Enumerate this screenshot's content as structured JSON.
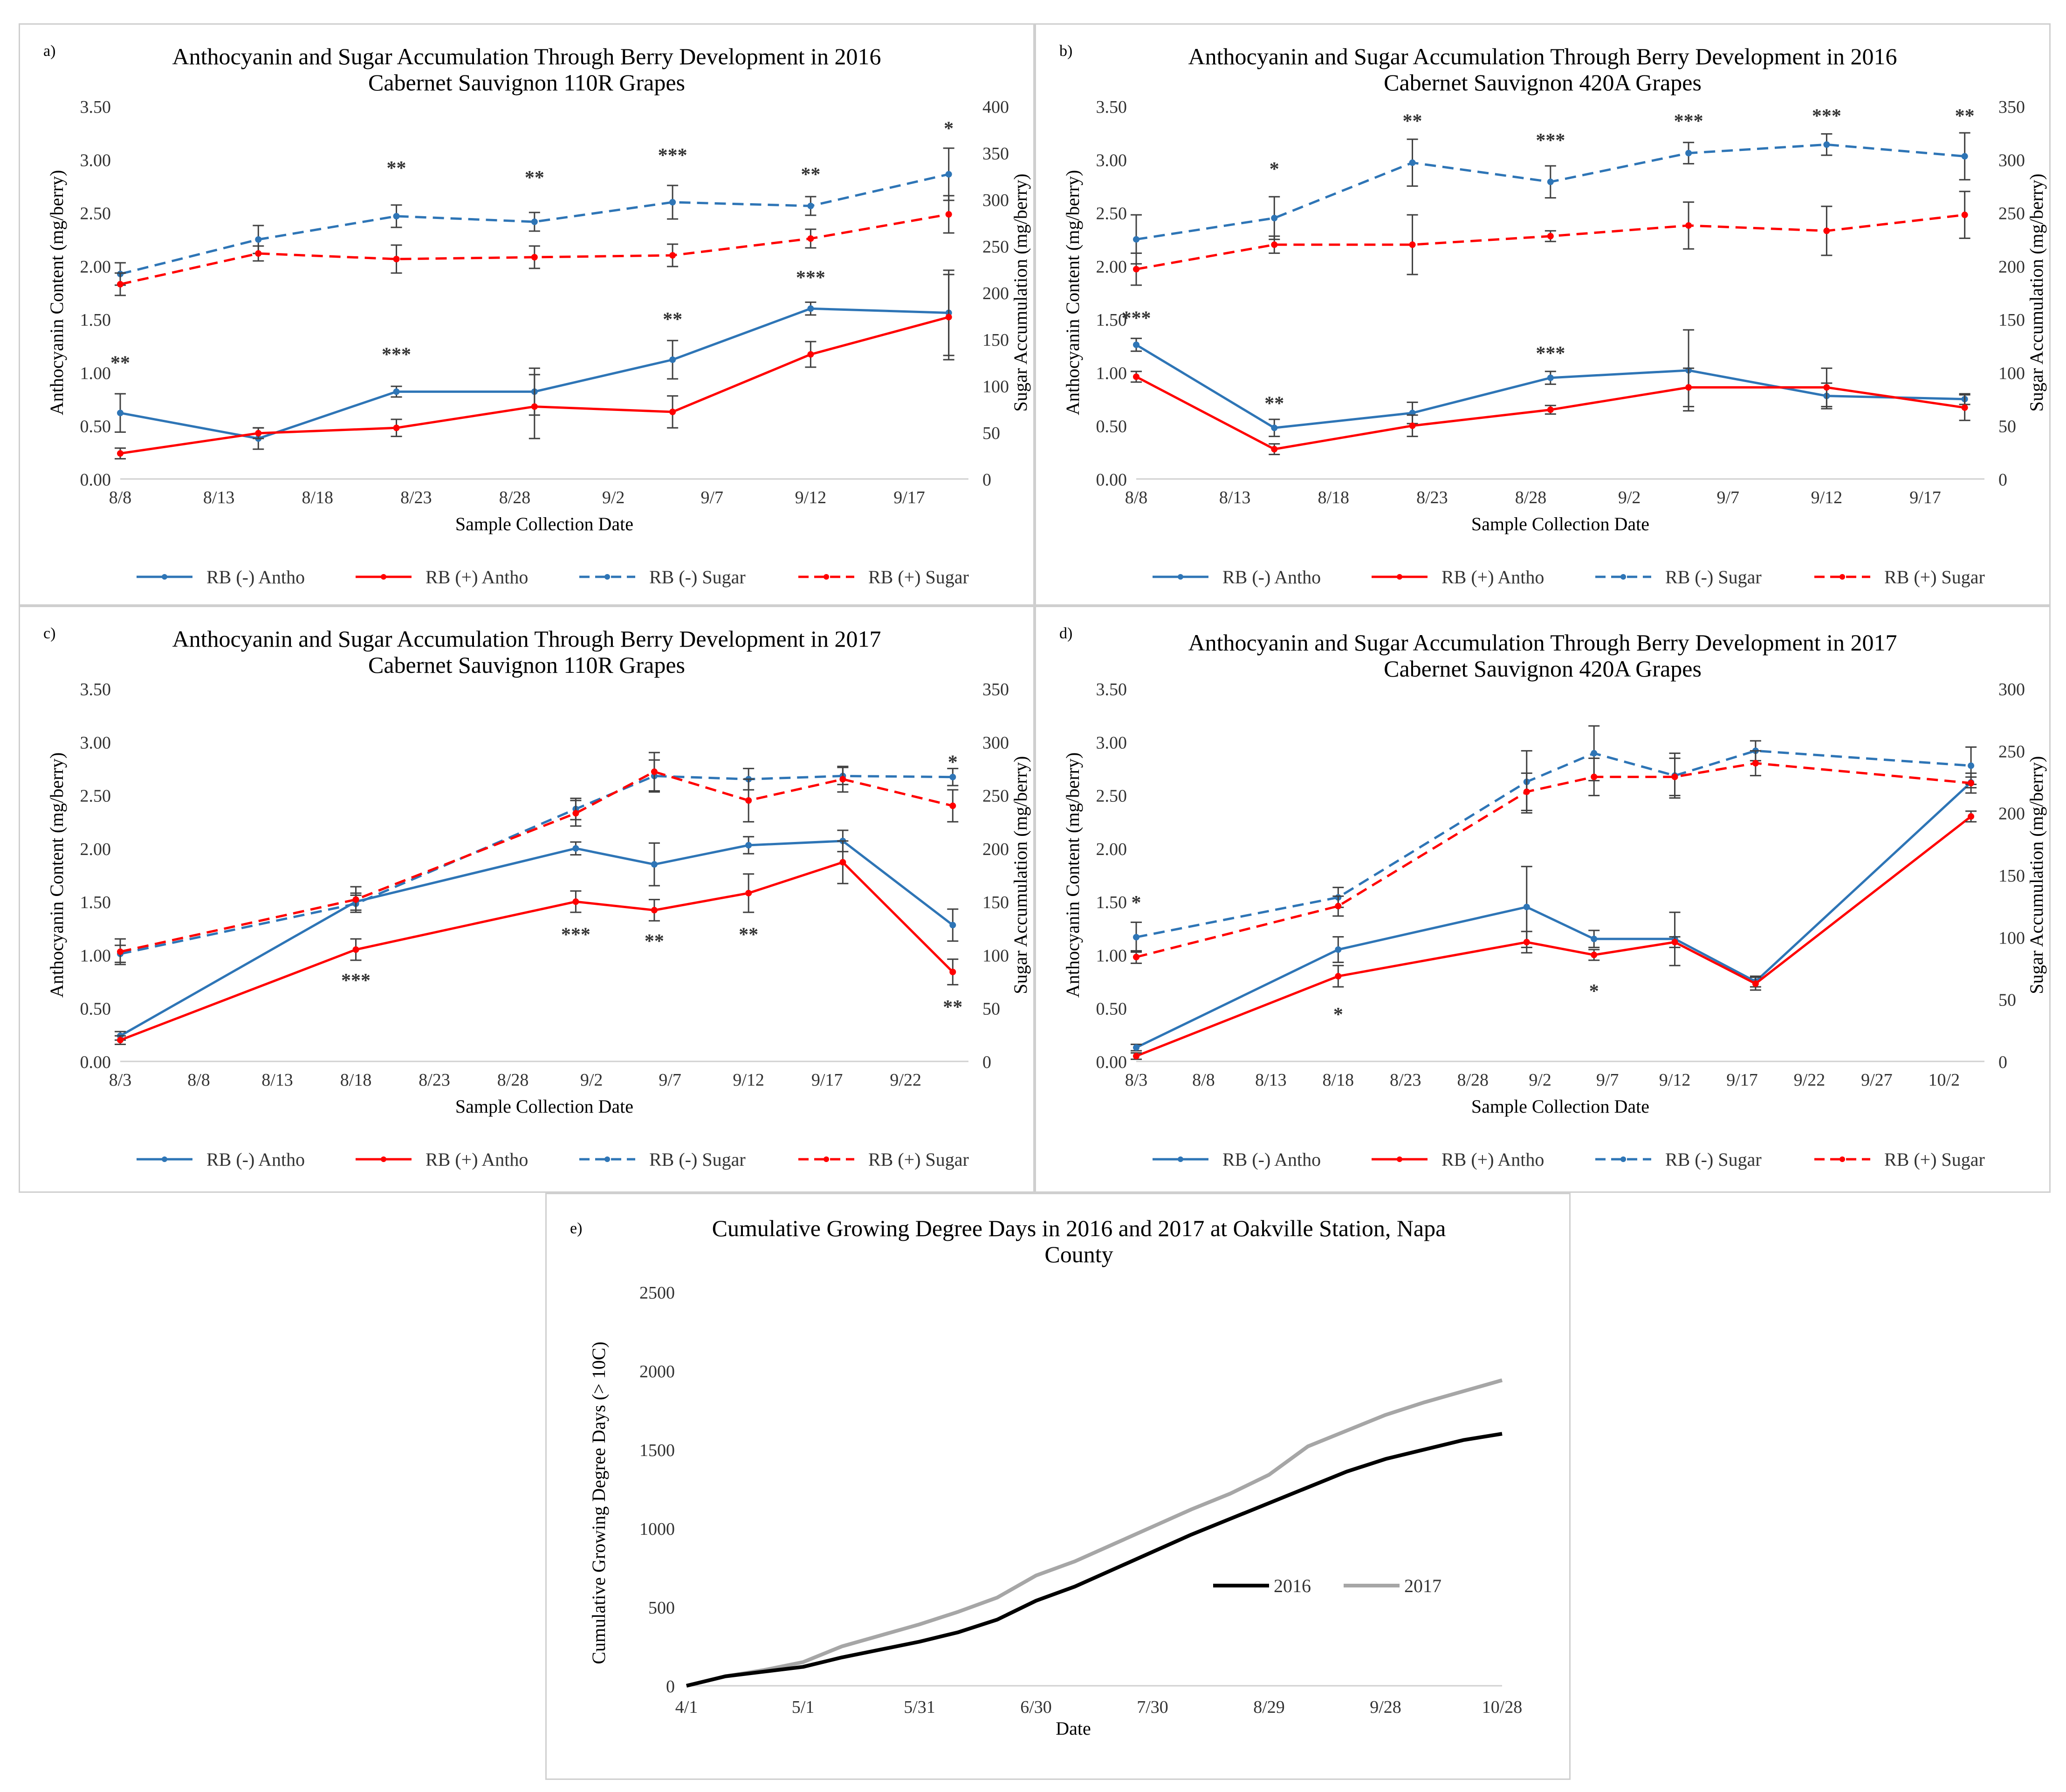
{
  "chart_data": [
    {
      "type": "line",
      "panel": "a)",
      "title": "Anthocyanin and Sugar Accumulation Through Berry Development in 2016",
      "subtitle": "Cabernet Sauvignon 110R Grapes",
      "xlabel": "Sample Collection Date",
      "ylabel": "Anthocyanin Content (mg/berry)",
      "ylabel2": "Sugar Accumulation (mg/berry)",
      "x_ticks": [
        "8/8",
        "8/13",
        "8/18",
        "8/23",
        "8/28",
        "9/2",
        "9/7",
        "9/12",
        "9/17"
      ],
      "x_tick_days": [
        8,
        13,
        18,
        23,
        28,
        33,
        38,
        43,
        48
      ],
      "x_range": [
        8,
        51
      ],
      "y_ticks": [
        "0.00",
        "0.50",
        "1.00",
        "1.50",
        "2.00",
        "2.50",
        "3.00",
        "3.50"
      ],
      "ylim": [
        0,
        3.5
      ],
      "y2_ticks": [
        "0",
        "50",
        "100",
        "150",
        "200",
        "250",
        "300",
        "350",
        "400"
      ],
      "y2lim": [
        0,
        400
      ],
      "x_days": [
        8,
        15,
        22,
        29,
        36,
        43,
        50
      ],
      "series": [
        {
          "name": "RB (-) Antho",
          "axis": "left",
          "color": "#2e75b6",
          "dash": false,
          "values": [
            0.62,
            0.38,
            0.82,
            0.82,
            1.12,
            1.6,
            1.56
          ],
          "errors": [
            0.18,
            0.1,
            0.05,
            0.22,
            0.18,
            0.06,
            0.4
          ]
        },
        {
          "name": "RB (+) Antho",
          "axis": "left",
          "color": "#ff0000",
          "dash": false,
          "values": [
            0.24,
            0.43,
            0.48,
            0.68,
            0.63,
            1.17,
            1.52
          ],
          "errors": [
            0.05,
            0.05,
            0.08,
            0.3,
            0.15,
            0.12,
            0.4
          ]
        },
        {
          "name": "RB (-) Sugar",
          "axis": "right",
          "color": "#2e75b6",
          "dash": true,
          "values": [
            220,
            257,
            282,
            276,
            297,
            293,
            327
          ],
          "errors": [
            12,
            15,
            12,
            10,
            18,
            10,
            28
          ]
        },
        {
          "name": "RB (+) Sugar",
          "axis": "right",
          "color": "#ff0000",
          "dash": true,
          "values": [
            209,
            242,
            236,
            238,
            240,
            258,
            284
          ],
          "errors": [
            12,
            8,
            15,
            12,
            12,
            10,
            20
          ]
        }
      ],
      "annotations": [
        {
          "text": "**",
          "x": 8,
          "y": 1.03
        },
        {
          "text": "**",
          "x": 22,
          "y": 2.86
        },
        {
          "text": "***",
          "x": 22,
          "y": 1.11
        },
        {
          "text": "**",
          "x": 29,
          "y": 2.77
        },
        {
          "text": "***",
          "x": 36,
          "y": 2.98
        },
        {
          "text": "**",
          "x": 36,
          "y": 1.44
        },
        {
          "text": "**",
          "x": 43,
          "y": 2.8
        },
        {
          "text": "***",
          "x": 43,
          "y": 1.83
        },
        {
          "text": "*",
          "x": 50,
          "y": 3.23
        }
      ]
    },
    {
      "type": "line",
      "panel": "b)",
      "title": "Anthocyanin and Sugar Accumulation Through Berry Development in 2016",
      "subtitle": "Cabernet Sauvignon 420A Grapes",
      "xlabel": "Sample Collection Date",
      "ylabel": "Anthocyanin Content (mg/berry)",
      "ylabel2": "Sugar Accumulation (mg/berry)",
      "x_ticks": [
        "8/8",
        "8/13",
        "8/18",
        "8/23",
        "8/28",
        "9/2",
        "9/7",
        "9/12",
        "9/17"
      ],
      "x_tick_days": [
        8,
        13,
        18,
        23,
        28,
        33,
        38,
        43,
        48
      ],
      "x_range": [
        8,
        51
      ],
      "y_ticks": [
        "0.00",
        "0.50",
        "1.00",
        "1.50",
        "2.00",
        "2.50",
        "3.00",
        "3.50"
      ],
      "ylim": [
        0,
        3.5
      ],
      "y2_ticks": [
        "0",
        "50",
        "100",
        "150",
        "200",
        "250",
        "300",
        "350"
      ],
      "y2lim": [
        0,
        350
      ],
      "x_days": [
        8,
        15,
        22,
        29,
        36,
        43,
        50
      ],
      "series": [
        {
          "name": "RB (-) Antho",
          "axis": "left",
          "color": "#2e75b6",
          "dash": false,
          "values": [
            1.26,
            0.48,
            0.62,
            0.95,
            1.02,
            0.78,
            0.75
          ],
          "errors": [
            0.06,
            0.08,
            0.1,
            0.06,
            0.38,
            0.12,
            0.05
          ]
        },
        {
          "name": "RB (+) Antho",
          "axis": "left",
          "color": "#ff0000",
          "dash": false,
          "values": [
            0.96,
            0.28,
            0.5,
            0.65,
            0.86,
            0.86,
            0.67
          ],
          "errors": [
            0.05,
            0.05,
            0.1,
            0.04,
            0.18,
            0.18,
            0.12
          ]
        },
        {
          "name": "RB (-) Sugar",
          "axis": "right",
          "color": "#2e75b6",
          "dash": true,
          "values": [
            225,
            245,
            297,
            279,
            306,
            314,
            303
          ],
          "errors": [
            23,
            20,
            22,
            15,
            10,
            10,
            22
          ]
        },
        {
          "name": "RB (+) Sugar",
          "axis": "right",
          "color": "#ff0000",
          "dash": true,
          "values": [
            197,
            220,
            220,
            228,
            238,
            233,
            248
          ],
          "errors": [
            15,
            8,
            28,
            5,
            22,
            23,
            22
          ]
        }
      ],
      "annotations": [
        {
          "text": "***",
          "x": 8,
          "y": 1.45
        },
        {
          "text": "*",
          "x": 15,
          "y": 2.85
        },
        {
          "text": "**",
          "x": 15,
          "y": 0.65
        },
        {
          "text": "**",
          "x": 22,
          "y": 3.3
        },
        {
          "text": "***",
          "x": 29,
          "y": 3.12
        },
        {
          "text": "***",
          "x": 29,
          "y": 1.12
        },
        {
          "text": "***",
          "x": 36,
          "y": 3.3
        },
        {
          "text": "***",
          "x": 43,
          "y": 3.35
        },
        {
          "text": "**",
          "x": 50,
          "y": 3.35
        }
      ]
    },
    {
      "type": "line",
      "panel": "c)",
      "title": "Anthocyanin and Sugar Accumulation Through Berry Development in 2017",
      "subtitle": "Cabernet Sauvignon 110R Grapes",
      "xlabel": "Sample Collection Date",
      "ylabel": "Anthocyanin Content (mg/berry)",
      "ylabel2": "Sugar Accumulation (mg/berry)",
      "x_ticks": [
        "8/3",
        "8/8",
        "8/13",
        "8/18",
        "8/23",
        "8/28",
        "9/2",
        "9/7",
        "9/12",
        "9/17",
        "9/22"
      ],
      "x_tick_days": [
        3,
        8,
        13,
        18,
        23,
        28,
        33,
        38,
        43,
        48,
        53
      ],
      "x_range": [
        3,
        57
      ],
      "y_ticks": [
        "0.00",
        "0.50",
        "1.00",
        "1.50",
        "2.00",
        "2.50",
        "3.00",
        "3.50"
      ],
      "ylim": [
        0,
        3.5
      ],
      "y2_ticks": [
        "0",
        "50",
        "100",
        "150",
        "200",
        "250",
        "300",
        "350"
      ],
      "y2lim": [
        0,
        350
      ],
      "x_days": [
        3,
        18,
        32,
        37,
        43,
        49,
        56
      ],
      "series": [
        {
          "name": "RB (-) Antho",
          "axis": "left",
          "color": "#2e75b6",
          "dash": false,
          "values": [
            0.24,
            1.5,
            2.0,
            1.85,
            2.03,
            2.07,
            1.28
          ],
          "errors": [
            0.04,
            0.08,
            0.06,
            0.2,
            0.08,
            0.1,
            0.15
          ]
        },
        {
          "name": "RB (+) Antho",
          "axis": "left",
          "color": "#ff0000",
          "dash": false,
          "values": [
            0.2,
            1.05,
            1.5,
            1.42,
            1.58,
            1.87,
            0.84
          ],
          "errors": [
            0.04,
            0.1,
            0.1,
            0.1,
            0.18,
            0.2,
            0.12
          ]
        },
        {
          "name": "RB (-) Sugar",
          "axis": "right",
          "color": "#2e75b6",
          "dash": true,
          "values": [
            101,
            148,
            237,
            268,
            265,
            268,
            267
          ],
          "errors": [
            8,
            8,
            10,
            15,
            10,
            8,
            8
          ]
        },
        {
          "name": "RB (+) Sugar",
          "axis": "right",
          "color": "#ff0000",
          "dash": true,
          "values": [
            103,
            152,
            233,
            272,
            245,
            265,
            240
          ],
          "errors": [
            12,
            12,
            12,
            18,
            20,
            12,
            15
          ]
        }
      ],
      "annotations": [
        {
          "text": "***",
          "x": 18,
          "y": 0.7
        },
        {
          "text": "***",
          "x": 32,
          "y": 1.13
        },
        {
          "text": "**",
          "x": 37,
          "y": 1.07
        },
        {
          "text": "**",
          "x": 43,
          "y": 1.13
        },
        {
          "text": "*",
          "x": 56,
          "y": 2.75
        },
        {
          "text": "**",
          "x": 56,
          "y": 0.45
        }
      ]
    },
    {
      "type": "line",
      "panel": "d)",
      "title": "Anthocyanin and Sugar Accumulation Through Berry Development in 2017",
      "subtitle": "Cabernet Sauvignon 420A Grapes",
      "xlabel": "Sample Collection Date",
      "ylabel": "Anthocyanin Content (mg/berry)",
      "ylabel2": "Sugar Accumulation (mg/berry)",
      "x_ticks": [
        "8/3",
        "8/8",
        "8/13",
        "8/18",
        "8/23",
        "8/28",
        "9/2",
        "9/7",
        "9/12",
        "9/17",
        "9/22",
        "9/27",
        "10/2"
      ],
      "x_tick_days": [
        3,
        8,
        13,
        18,
        23,
        28,
        33,
        38,
        43,
        48,
        53,
        58,
        63
      ],
      "x_range": [
        3,
        66
      ],
      "y_ticks": [
        "0.00",
        "0.50",
        "1.00",
        "1.50",
        "2.00",
        "2.50",
        "3.00",
        "3.50"
      ],
      "ylim": [
        0,
        3.5
      ],
      "y2_ticks": [
        "0",
        "50",
        "100",
        "150",
        "200",
        "250",
        "300"
      ],
      "y2lim": [
        0,
        300
      ],
      "x_days": [
        3,
        18,
        32,
        37,
        43,
        49,
        65
      ],
      "series": [
        {
          "name": "RB (-) Antho",
          "axis": "left",
          "color": "#2e75b6",
          "dash": false,
          "values": [
            0.13,
            1.05,
            1.45,
            1.15,
            1.15,
            0.75,
            2.62
          ],
          "errors": [
            0.03,
            0.12,
            0.38,
            0.08,
            0.25,
            0.05,
            0.05
          ]
        },
        {
          "name": "RB (+) Antho",
          "axis": "left",
          "color": "#ff0000",
          "dash": false,
          "values": [
            0.05,
            0.8,
            1.12,
            1.0,
            1.12,
            0.73,
            2.3
          ],
          "errors": [
            0.03,
            0.1,
            0.1,
            0.05,
            0.05,
            0.06,
            0.05
          ]
        },
        {
          "name": "RB (-) Sugar",
          "axis": "right",
          "color": "#2e75b6",
          "dash": true,
          "values": [
            100,
            132,
            225,
            248,
            230,
            250,
            238
          ],
          "errors": [
            12,
            8,
            25,
            22,
            18,
            8,
            15
          ]
        },
        {
          "name": "RB (+) Sugar",
          "axis": "right",
          "color": "#ff0000",
          "dash": true,
          "values": [
            84,
            125,
            217,
            229,
            229,
            240,
            224
          ],
          "errors": [
            5,
            8,
            15,
            15,
            15,
            10,
            8
          ]
        }
      ],
      "annotations": [
        {
          "text": "*",
          "x": 3,
          "y": 1.43
        },
        {
          "text": "*",
          "x": 18,
          "y": 0.38
        },
        {
          "text": "*",
          "x": 37,
          "y": 0.6
        }
      ]
    },
    {
      "type": "line",
      "panel": "e)",
      "title": "Cumulative Growing Degree Days in 2016 and 2017 at Oakville Station, Napa",
      "subtitle": "County",
      "xlabel": "Date",
      "ylabel": "Cumulative Growing Degree Days (> 10C)",
      "x_ticks": [
        "4/1",
        "5/1",
        "5/31",
        "6/30",
        "7/30",
        "8/29",
        "9/28",
        "10/28"
      ],
      "x_tick_days": [
        0,
        30,
        60,
        90,
        120,
        150,
        180,
        210
      ],
      "x_range": [
        0,
        210
      ],
      "y_ticks": [
        "0",
        "500",
        "1000",
        "1500",
        "2000",
        "2500"
      ],
      "ylim": [
        0,
        2500
      ],
      "series": [
        {
          "name": "2016",
          "color": "#000000",
          "x": [
            0,
            10,
            20,
            30,
            40,
            50,
            60,
            70,
            80,
            90,
            100,
            110,
            120,
            130,
            140,
            150,
            160,
            170,
            180,
            190,
            200,
            210
          ],
          "values": [
            0,
            60,
            90,
            120,
            180,
            230,
            280,
            340,
            420,
            540,
            630,
            740,
            850,
            960,
            1060,
            1160,
            1260,
            1360,
            1440,
            1500,
            1560,
            1600
          ]
        },
        {
          "name": "2017",
          "color": "#a6a6a6",
          "x": [
            0,
            10,
            20,
            30,
            40,
            50,
            60,
            70,
            80,
            90,
            100,
            110,
            120,
            130,
            140,
            150,
            160,
            170,
            180,
            190,
            200,
            210
          ],
          "values": [
            0,
            60,
            100,
            150,
            250,
            320,
            390,
            470,
            560,
            700,
            790,
            900,
            1010,
            1120,
            1220,
            1340,
            1520,
            1620,
            1720,
            1800,
            1870,
            1940
          ]
        }
      ]
    }
  ]
}
